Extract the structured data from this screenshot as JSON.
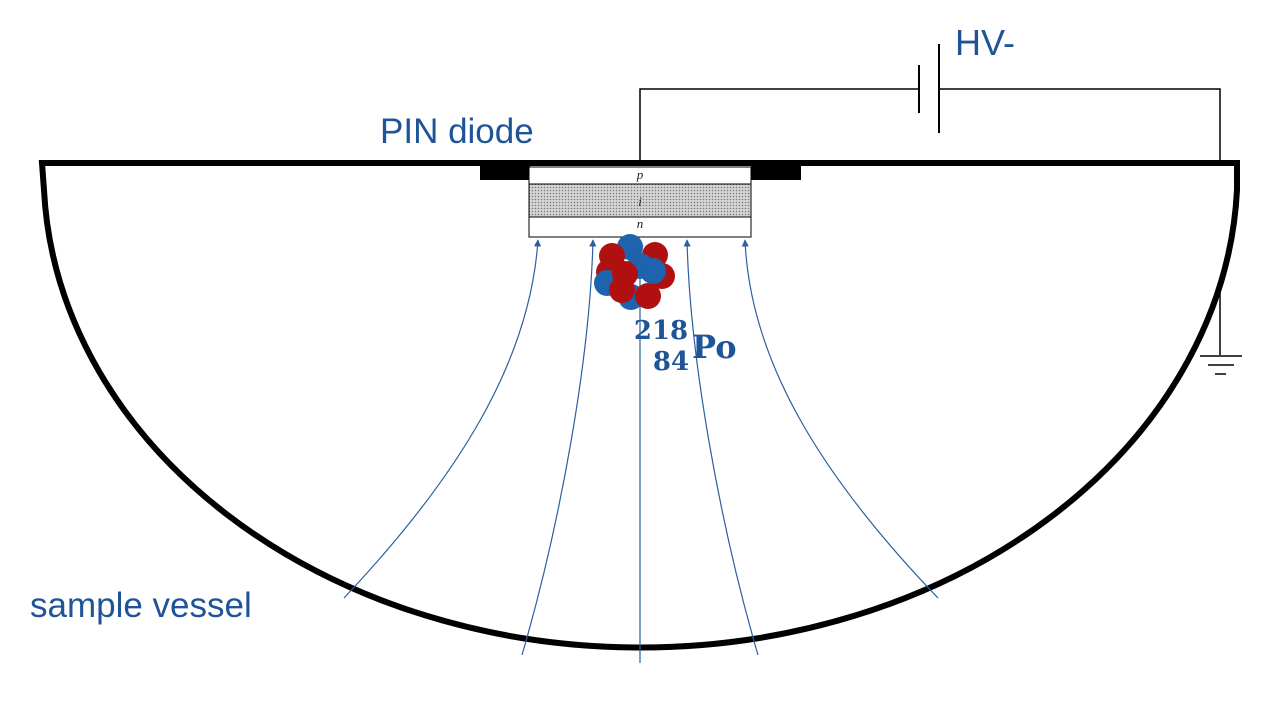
{
  "labels": {
    "hv": "HV-",
    "pin_diode": "PIN diode",
    "sample_vessel": "sample vessel",
    "nuclide_mass": "218",
    "nuclide_atomic": "84",
    "nuclide_symbol": "Po",
    "layer_p": "p",
    "layer_i": "i",
    "layer_n": "n"
  },
  "colors": {
    "label_blue": "#1f5596",
    "field_line": "#2c5f9e",
    "proton_red": "#b01010",
    "neutron_blue": "#1d63ad",
    "vessel": "#000000",
    "intrinsic_fill": "#bfbfbf"
  },
  "icons": {
    "battery": "battery-symbol-icon",
    "ground": "ground-symbol-icon",
    "nucleus": "atomic-nucleus-icon"
  }
}
